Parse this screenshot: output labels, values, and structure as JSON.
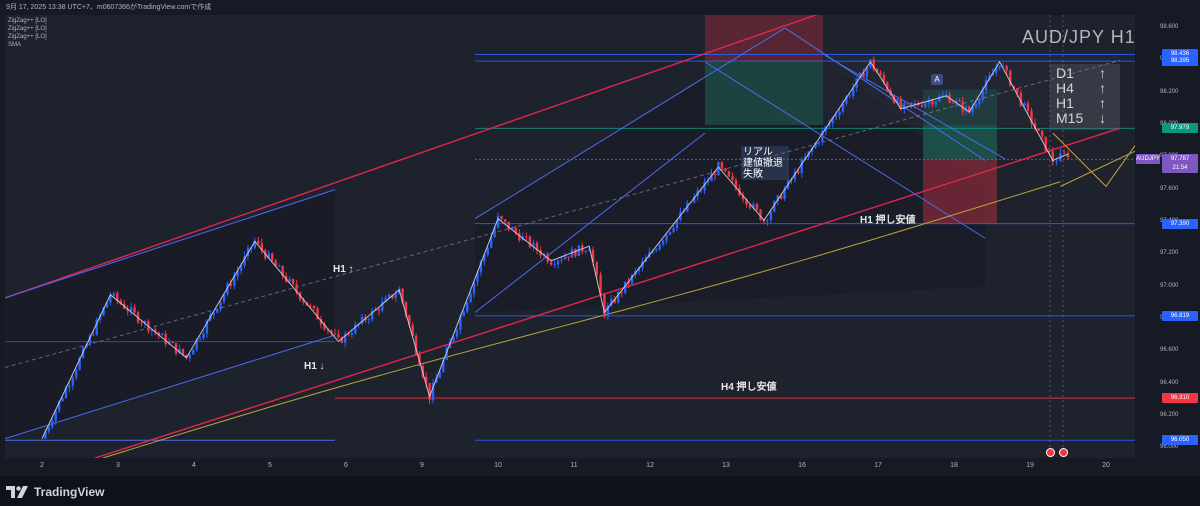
{
  "header": {
    "text": "9月 17, 2025 13:38 UTC+7、m0607366がTradingView.comで作成"
  },
  "indicators": [
    "ZigZag++ [LO]",
    "ZigZag++ [LO]",
    "ZigZag++ [LO]",
    "SMA"
  ],
  "symbol_title": "AUD/JPY H1",
  "footer": {
    "brand": "TradingView"
  },
  "annotations": {
    "h1_up": "H1 ↑",
    "h1_down": "H1 ↓",
    "h1_pullback": "H1 押し安値",
    "h4_pullback": "H4  押し安値",
    "fail_note": [
      "リアル",
      "建値撤退",
      "失敗"
    ],
    "marker_a": "A"
  },
  "trend_box": [
    {
      "tf": "D1",
      "dir": "↑"
    },
    {
      "tf": "H4",
      "dir": "↑"
    },
    {
      "tf": "H1",
      "dir": "↑"
    },
    {
      "tf": "M15",
      "dir": "↓"
    }
  ],
  "colors": {
    "background": "#1e222d",
    "bull_candle": "#2962ff",
    "bear_candle": "#f23645",
    "sma": "#b8a53a",
    "zigzag": "#d1d4dc",
    "channel_red": "#e0264d",
    "channel_blue": "#4a6cf0",
    "stop_zone": "#8a2a3a",
    "target_zone": "#1e5e50"
  },
  "chart_data": {
    "type": "candlestick",
    "x_tick_labels": [
      "2",
      "3",
      "4",
      "5",
      "6",
      "9",
      "10",
      "11",
      "12",
      "13",
      "16",
      "17",
      "18",
      "19",
      "20"
    ],
    "y_ticks": [
      96.0,
      96.2,
      96.4,
      96.6,
      96.8,
      97.0,
      97.2,
      97.4,
      97.6,
      97.8,
      98.0,
      98.2,
      98.4,
      98.6
    ],
    "ylim": [
      95.94,
      98.68
    ],
    "zigzag_swings": [
      {
        "day": 1.0,
        "price": 96.06
      },
      {
        "day": 1.9,
        "price": 96.95
      },
      {
        "day": 2.9,
        "price": 96.56
      },
      {
        "day": 3.8,
        "price": 97.28
      },
      {
        "day": 4.9,
        "price": 96.66
      },
      {
        "day": 5.7,
        "price": 96.98
      },
      {
        "day": 6.1,
        "price": 96.32
      },
      {
        "day": 7.0,
        "price": 97.42
      },
      {
        "day": 7.7,
        "price": 97.16
      },
      {
        "day": 8.2,
        "price": 97.25
      },
      {
        "day": 8.4,
        "price": 96.84
      },
      {
        "day": 9.9,
        "price": 97.74
      },
      {
        "day": 10.5,
        "price": 97.41
      },
      {
        "day": 11.9,
        "price": 98.39
      },
      {
        "day": 12.3,
        "price": 98.1
      },
      {
        "day": 12.9,
        "price": 98.18
      },
      {
        "day": 13.2,
        "price": 98.08
      },
      {
        "day": 13.6,
        "price": 98.39
      },
      {
        "day": 14.3,
        "price": 97.78
      },
      {
        "day": 14.5,
        "price": 97.82
      }
    ],
    "price_levels": [
      {
        "label": "98.436",
        "price": 98.436,
        "color": "#2962ff"
      },
      {
        "label": "98.395",
        "price": 98.395,
        "color": "#2962ff"
      },
      {
        "label": "97.979",
        "price": 97.979,
        "color": "#089981"
      },
      {
        "label": "97.787",
        "price": 97.787,
        "color": "#7e57c2"
      },
      {
        "label": "97.390",
        "price": 97.39,
        "color": "#2962ff"
      },
      {
        "label": "96.819",
        "price": 96.819,
        "color": "#2962ff"
      },
      {
        "label": "96.310",
        "price": 96.31,
        "color": "#f23645"
      },
      {
        "label": "96.050",
        "price": 96.05,
        "color": "#2962ff"
      }
    ],
    "last_price_tag": {
      "symbol": "AUDJPY",
      "price": "97.787",
      "countdown": "21:54"
    }
  }
}
